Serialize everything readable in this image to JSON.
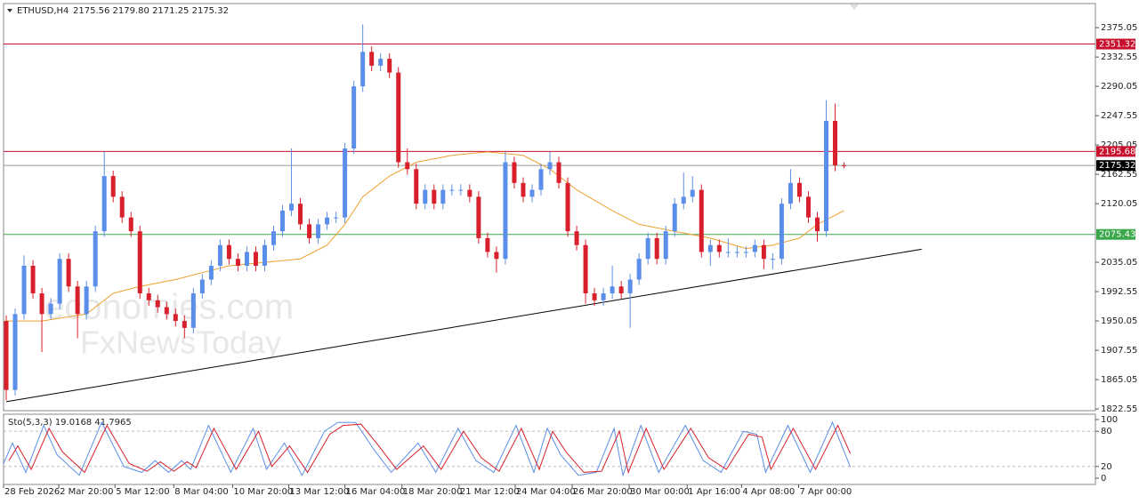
{
  "header": {
    "symbol": "ETHUSD,H4",
    "quote": "2175.56 2179.80 2171.25 2175.32"
  },
  "watermark": [
    "economies.com",
    "FxNewsToday"
  ],
  "chart_data": [
    {
      "type": "candlestick",
      "bull_color": "#5b8ee8",
      "bear_color": "#d8202c",
      "grid": false,
      "xlim": [
        -0.3,
        122.2
      ],
      "ylim": [
        1820,
        2410
      ],
      "yticks": [
        2375.05,
        2332.55,
        2290.05,
        2247.55,
        2205.05,
        2162.55,
        2120.05,
        2035.05,
        1992.55,
        1950.05,
        1907.55,
        1865.05,
        1822.55
      ],
      "xticks": [
        {
          "value": -0.3,
          "label": "28 Feb 2026"
        },
        {
          "value": 5.9,
          "label": "2 Mar 20:00"
        },
        {
          "value": 12.2,
          "label": "5 Mar 12:00"
        },
        {
          "value": 18.8,
          "label": "8 Mar 04:00"
        },
        {
          "value": 25.4,
          "label": "10 Mar 20:00"
        },
        {
          "value": 31.7,
          "label": "13 Mar 12:00"
        },
        {
          "value": 38,
          "label": "16 Mar 04:00"
        },
        {
          "value": 44.4,
          "label": "18 Mar 20:00"
        },
        {
          "value": 50.8,
          "label": "21 Mar 12:00"
        },
        {
          "value": 57.1,
          "label": "24 Mar 04:00"
        },
        {
          "value": 63.5,
          "label": "26 Mar 20:00"
        },
        {
          "value": 69.9,
          "label": "30 Mar 00:00"
        },
        {
          "value": 76.4,
          "label": "1 Apr 16:00"
        },
        {
          "value": 82.5,
          "label": "4 Apr 08:00"
        },
        {
          "value": 88.9,
          "label": "7 Apr 00:00"
        }
      ],
      "open": [
        1950,
        1850,
        1960,
        2030,
        1990,
        1960,
        1975,
        2040,
        2000,
        1960,
        2000,
        2080,
        2160,
        2130,
        2100,
        2080,
        1990,
        1980,
        1970,
        1960,
        1950,
        1940,
        1990,
        2010,
        2030,
        2060,
        2040,
        2030,
        2050,
        2030,
        2060,
        2080,
        2110,
        2120,
        2090,
        2070,
        2090,
        2100,
        2100,
        2200,
        2290,
        2340,
        2320,
        2330,
        2310,
        2180,
        2170,
        2120,
        2140,
        2120,
        2140,
        2140,
        2140,
        2130,
        2070,
        2050,
        2040,
        2180,
        2150,
        2130,
        2140,
        2170,
        2180,
        2150,
        2080,
        2060,
        1990,
        1980,
        1990,
        2000,
        1990,
        2010,
        2040,
        2070,
        2040,
        2080,
        2120,
        2130,
        2140,
        2050,
        2060,
        2050,
        2050,
        2050,
        2050,
        2060,
        2040,
        2040,
        2120,
        2150,
        2130,
        2100,
        2080,
        2240,
        2175.56
      ],
      "high": [
        1958,
        1968,
        2045,
        2038,
        1998,
        1983,
        2048,
        2048,
        2008,
        2008,
        2088,
        2195,
        2168,
        2138,
        2108,
        2088,
        1998,
        1988,
        1978,
        1968,
        1958,
        1998,
        2018,
        2038,
        2068,
        2068,
        2048,
        2058,
        2058,
        2068,
        2088,
        2118,
        2200,
        2128,
        2098,
        2098,
        2108,
        2108,
        2208,
        2298,
        2380,
        2348,
        2338,
        2338,
        2318,
        2200,
        2178,
        2148,
        2148,
        2148,
        2148,
        2148,
        2148,
        2138,
        2078,
        2058,
        2195,
        2188,
        2158,
        2148,
        2178,
        2195,
        2188,
        2158,
        2088,
        2068,
        1998,
        1998,
        2030,
        2008,
        2018,
        2048,
        2078,
        2078,
        2088,
        2128,
        2165,
        2160,
        2148,
        2068,
        2068,
        2070,
        2058,
        2058,
        2068,
        2068,
        2048,
        2128,
        2170,
        2158,
        2138,
        2108,
        2270,
        2265,
        2179.8
      ],
      "low": [
        1835,
        1842,
        1952,
        1982,
        1905,
        1952,
        1967,
        1992,
        1925,
        1952,
        1992,
        2072,
        2122,
        2092,
        2072,
        1982,
        1972,
        1962,
        1952,
        1942,
        1925,
        1932,
        1982,
        2002,
        2022,
        2032,
        2022,
        2022,
        2022,
        2022,
        2052,
        2072,
        2102,
        2082,
        2062,
        2062,
        2082,
        2092,
        2092,
        2192,
        2282,
        2312,
        2312,
        2302,
        2172,
        2162,
        2112,
        2112,
        2112,
        2112,
        2132,
        2132,
        2122,
        2062,
        2042,
        2020,
        2032,
        2142,
        2122,
        2122,
        2132,
        2162,
        2142,
        2072,
        2052,
        1975,
        1972,
        1972,
        1982,
        1982,
        1940,
        2002,
        2032,
        2032,
        2032,
        2072,
        2112,
        2122,
        2042,
        2030,
        2042,
        2042,
        2042,
        2042,
        2042,
        2025,
        2025,
        2032,
        2112,
        2122,
        2092,
        2065,
        2072,
        2167,
        2171.25
      ],
      "close": [
        1850,
        1960,
        2030,
        1990,
        1960,
        1975,
        2040,
        2000,
        1960,
        2000,
        2080,
        2160,
        2130,
        2100,
        2080,
        1990,
        1980,
        1970,
        1960,
        1950,
        1940,
        1990,
        2010,
        2030,
        2060,
        2040,
        2030,
        2050,
        2030,
        2060,
        2080,
        2110,
        2120,
        2090,
        2070,
        2090,
        2100,
        2100,
        2200,
        2290,
        2340,
        2320,
        2330,
        2310,
        2180,
        2170,
        2120,
        2140,
        2120,
        2140,
        2140,
        2140,
        2130,
        2070,
        2050,
        2040,
        2180,
        2150,
        2130,
        2140,
        2170,
        2180,
        2150,
        2080,
        2060,
        1990,
        1980,
        1990,
        2000,
        1990,
        2010,
        2040,
        2070,
        2040,
        2080,
        2120,
        2130,
        2140,
        2050,
        2060,
        2050,
        2050,
        2050,
        2050,
        2060,
        2040,
        2040,
        2120,
        2150,
        2130,
        2100,
        2080,
        2240,
        2175.56,
        2175.32
      ],
      "lines": [
        {
          "color": "#f0a030",
          "x": [
            0,
            4,
            9,
            12,
            15,
            19,
            22,
            25,
            29,
            33,
            36,
            38,
            40,
            43,
            46,
            50,
            54,
            58,
            61,
            64,
            68,
            71,
            75,
            79,
            83,
            86,
            89,
            91,
            94
          ],
          "values": [
            1950,
            1950,
            1960,
            1990,
            2000,
            2010,
            2020,
            2030,
            2035,
            2040,
            2060,
            2090,
            2130,
            2160,
            2180,
            2190,
            2195,
            2190,
            2170,
            2140,
            2110,
            2090,
            2080,
            2070,
            2055,
            2060,
            2070,
            2090,
            2110
          ]
        },
        {
          "color": "#000000",
          "x": [
            0,
            102.7
          ],
          "values": [
            1833,
            2054
          ]
        }
      ],
      "levels": [
        {
          "value": 2351.32,
          "color": "#c8102e"
        },
        {
          "value": 2195.68,
          "color": "#c8102e"
        },
        {
          "value": 2175.32,
          "color": "#999999"
        },
        {
          "value": 2075.43,
          "color": "#3aa84a"
        }
      ]
    },
    {
      "type": "line",
      "title": "Sto(5,3,3) 19.0168 41.7965",
      "xlim": [
        -0.3,
        122.2
      ],
      "ylim": [
        -10.6,
        109
      ],
      "yticks": [
        100,
        80,
        20,
        0
      ],
      "dashed_levels": [
        80,
        20
      ],
      "series": [
        {
          "color": "#5b8ee8",
          "x": [
            -0.3,
            0.7,
            2.2,
            4.2,
            5.7,
            8.2,
            10.7,
            13.2,
            15.2,
            16.7,
            18.2,
            19.7,
            20.7,
            22.7,
            25.2,
            27.7,
            29.2,
            31.2,
            33.2,
            35.7,
            37.2,
            39.2,
            41.2,
            43.2,
            46.2,
            48.2,
            50.7,
            52.7,
            54.7,
            57.2,
            59.2,
            60.7,
            62.2,
            64.2,
            66.2,
            68.2,
            69.2,
            71.2,
            73.2,
            76.2,
            78.2,
            80.2,
            82.7,
            84.2,
            85.2,
            87.7,
            90.2,
            92.7,
            94.7
          ],
          "values": [
            25,
            60,
            10,
            90,
            40,
            5,
            95,
            20,
            10,
            30,
            10,
            30,
            15,
            90,
            10,
            85,
            15,
            60,
            5,
            80,
            95,
            95,
            50,
            10,
            60,
            10,
            85,
            30,
            10,
            90,
            10,
            85,
            40,
            5,
            10,
            85,
            5,
            90,
            10,
            90,
            30,
            10,
            80,
            75,
            10,
            90,
            10,
            95,
            19
          ]
        },
        {
          "color": "#d8202c",
          "x": [
            0.3,
            1.3,
            2.8,
            4.8,
            6.3,
            8.8,
            11.3,
            13.8,
            15.8,
            17.3,
            18.8,
            20.3,
            21.3,
            23.3,
            25.8,
            28.3,
            29.8,
            31.8,
            33.8,
            36.3,
            37.8,
            39.8,
            41.8,
            43.8,
            46.8,
            48.8,
            51.3,
            53.3,
            55.3,
            57.8,
            59.8,
            61.3,
            62.8,
            64.8,
            66.8,
            68.8,
            69.8,
            71.8,
            73.8,
            76.8,
            78.8,
            80.8,
            83.3,
            84.8,
            85.8,
            88.3,
            90.8,
            93.3,
            94.7
          ],
          "values": [
            30,
            55,
            15,
            85,
            45,
            10,
            90,
            25,
            12,
            28,
            12,
            28,
            18,
            85,
            15,
            80,
            20,
            55,
            10,
            75,
            90,
            92,
            55,
            15,
            55,
            15,
            80,
            35,
            12,
            85,
            15,
            80,
            45,
            10,
            12,
            80,
            10,
            85,
            15,
            85,
            35,
            15,
            75,
            70,
            15,
            85,
            15,
            90,
            42
          ]
        }
      ]
    }
  ]
}
